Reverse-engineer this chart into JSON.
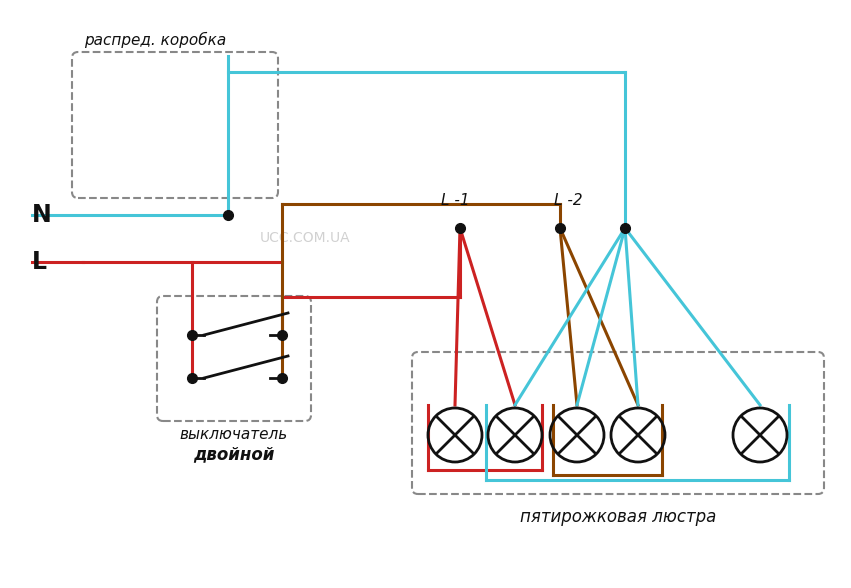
{
  "bg_color": "#ffffff",
  "cyan": "#45C5D8",
  "red": "#CC2222",
  "brown": "#8B4500",
  "black": "#111111",
  "gray_dash": "#888888",
  "label_N": "N",
  "label_L": "L",
  "label_L1": "L -1",
  "label_L2": "L -2",
  "label_box": "распред. коробка",
  "label_switch": "выключатель",
  "label_switch2": "двойной",
  "label_chandelier": "пятирожковая люстра",
  "label_watermark": "UCC.COM.UA",
  "lw": 2.2
}
